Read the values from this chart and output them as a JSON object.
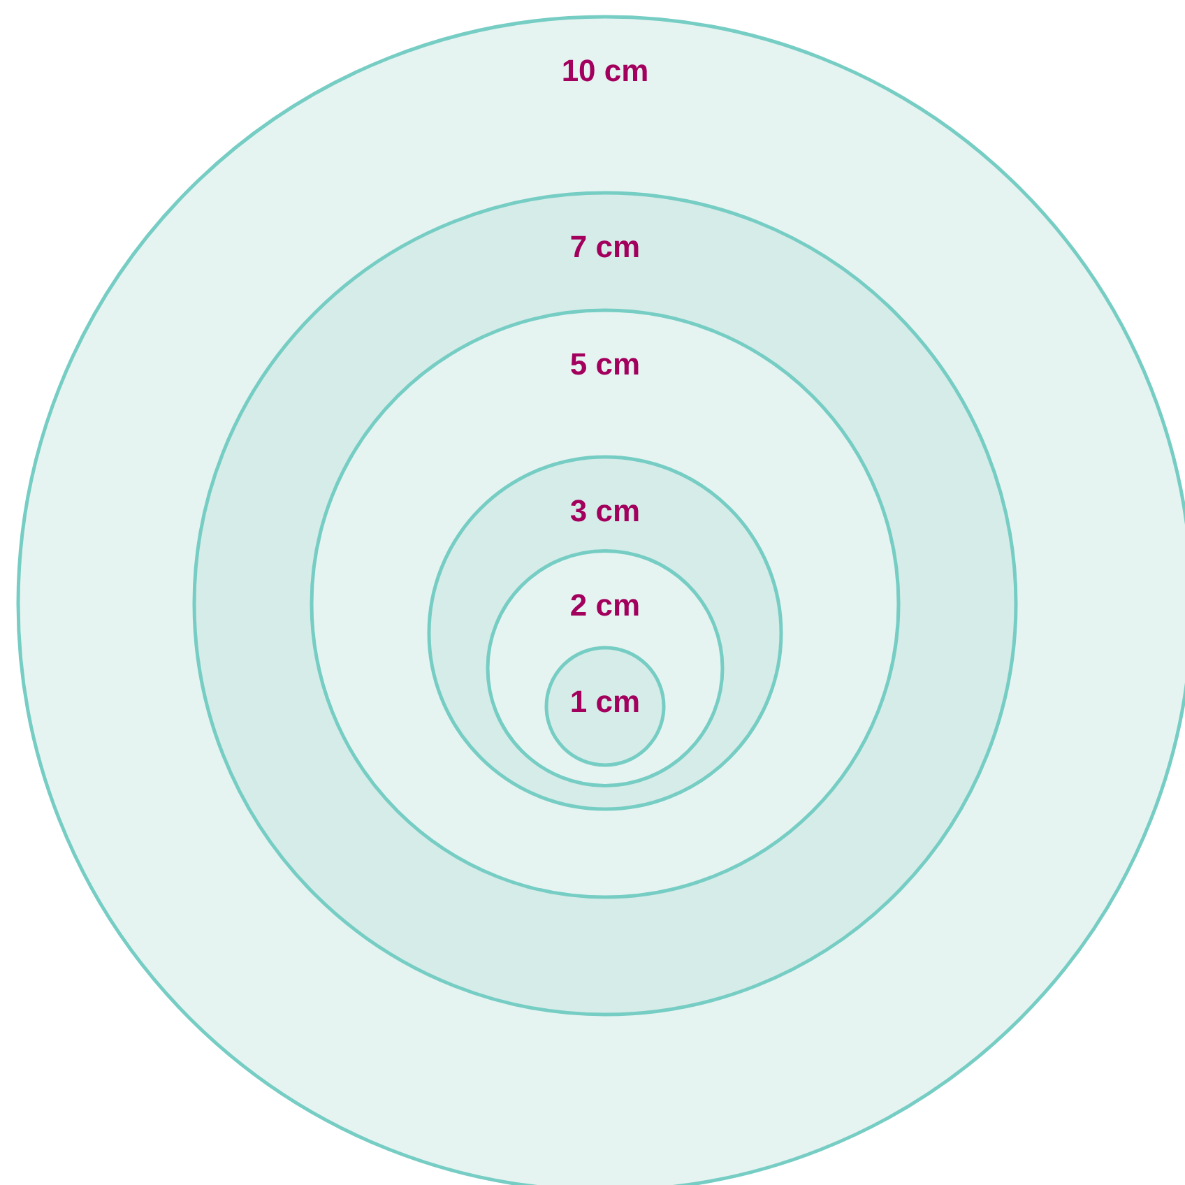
{
  "chart_data": {
    "type": "other",
    "values": [
      10,
      7,
      5,
      3,
      2,
      1
    ],
    "value_labels": [
      "10 cm",
      "7 cm",
      "5 cm",
      "3 cm",
      "2 cm",
      "1 cm"
    ],
    "colors": [
      "#e6f4f1",
      "#d6ece8",
      "#e6f4f1",
      "#d6ece8",
      "#e6f4f1",
      "#d6ece8"
    ]
  }
}
